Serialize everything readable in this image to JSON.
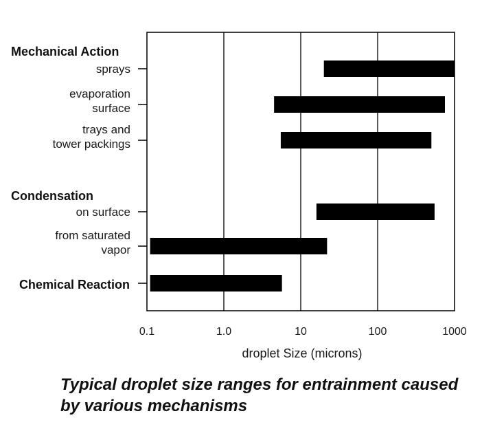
{
  "chart_data": {
    "type": "bar",
    "orientation": "horizontal-range",
    "x_scale": "log",
    "xlim": [
      0.1,
      1000
    ],
    "xlabel": "droplet Size (microns)",
    "ylabel": "",
    "title": "",
    "x_ticks": [
      "0.1",
      "1.0",
      "10",
      "100",
      "1000"
    ],
    "x_tick_values": [
      0.1,
      1,
      10,
      100,
      1000
    ],
    "grid": "vertical at decades",
    "bar_color": "#000000",
    "groups": [
      {
        "name": "Mechanical Action",
        "items": [
          {
            "label_lines": [
              "sprays"
            ],
            "min": 20,
            "max": 1000
          },
          {
            "label_lines": [
              "evaporation",
              "surface"
            ],
            "min": 4.5,
            "max": 750
          },
          {
            "label_lines": [
              "trays and",
              "tower packings"
            ],
            "min": 5.5,
            "max": 500
          }
        ]
      },
      {
        "name": "Condensation",
        "items": [
          {
            "label_lines": [
              "on surface"
            ],
            "min": 16,
            "max": 550
          },
          {
            "label_lines": [
              "from saturated",
              "vapor"
            ],
            "min": 0.11,
            "max": 22
          }
        ]
      },
      {
        "name": "Chemical Reaction",
        "items": [
          {
            "label_lines": [],
            "min": 0.11,
            "max": 5.7
          }
        ]
      }
    ]
  },
  "caption": "Typical droplet size ranges for entrainment caused by various mechanisms"
}
